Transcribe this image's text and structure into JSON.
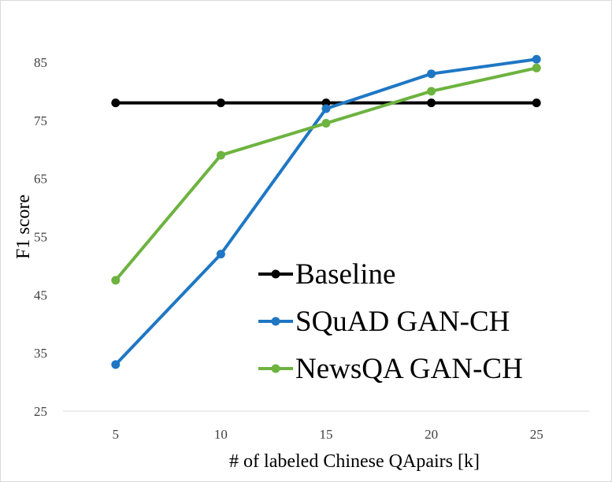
{
  "chart_data": {
    "type": "line",
    "title": "",
    "xlabel": "# of  labeled Chinese QApairs [k]",
    "ylabel": "F1 score",
    "x": [
      5,
      10,
      15,
      20,
      25
    ],
    "x_ticks": [
      "5",
      "10",
      "15",
      "20",
      "25"
    ],
    "ylim": [
      25,
      90
    ],
    "y_ticks": [
      25,
      35,
      45,
      55,
      65,
      75,
      85
    ],
    "grid": false,
    "legend_position": "bottom-right",
    "series": [
      {
        "name": "Baseline",
        "color": "#000000",
        "values": [
          78,
          78,
          78,
          78,
          78
        ]
      },
      {
        "name": "SQuAD GAN-CH",
        "color": "#1f77c4",
        "values": [
          33,
          52,
          77,
          83,
          85.5
        ]
      },
      {
        "name": "NewsQA GAN-CH",
        "color": "#6db33f",
        "values": [
          47.5,
          69,
          74.5,
          80,
          84
        ]
      }
    ]
  }
}
